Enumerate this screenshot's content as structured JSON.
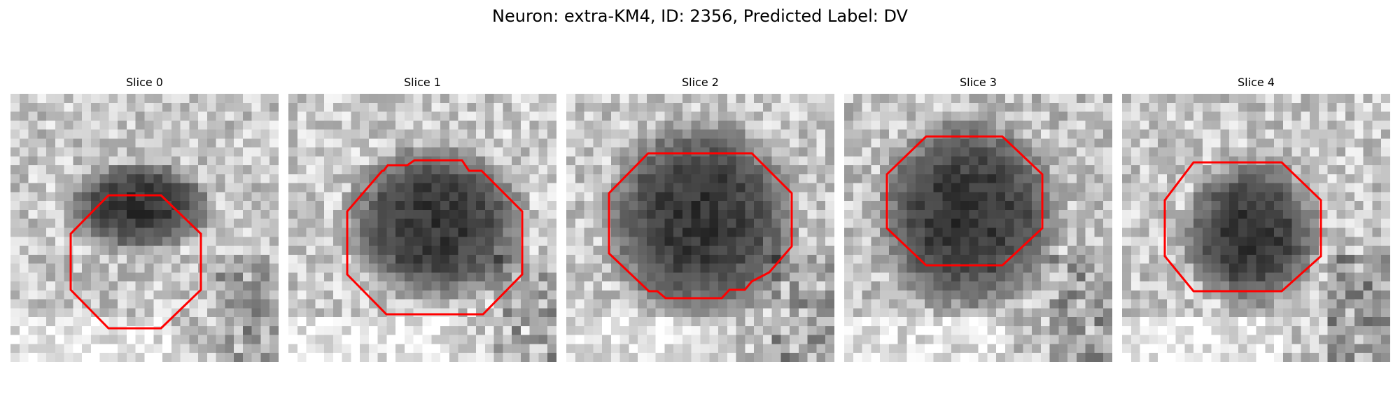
{
  "figure": {
    "title": "Neuron: extra-KM4, ID: 2356, Predicted Label: DV"
  },
  "panels": [
    {
      "title": "Slice 0"
    },
    {
      "title": "Slice 1"
    },
    {
      "title": "Slice 2"
    },
    {
      "title": "Slice 3"
    },
    {
      "title": "Slice 4"
    }
  ],
  "colors": {
    "contour": "#ff0000",
    "background": "#ffffff"
  }
}
